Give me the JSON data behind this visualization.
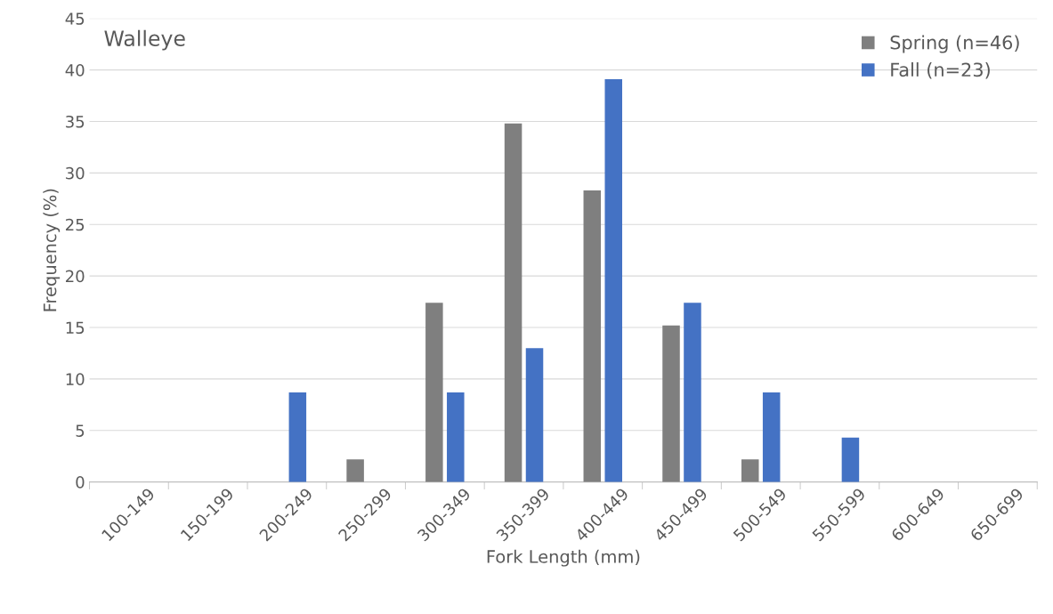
{
  "chart_data": {
    "type": "bar",
    "title": "Walleye",
    "xlabel": "Fork Length (mm)",
    "ylabel": "Frequency (%)",
    "categories": [
      "100-149",
      "150-199",
      "200-249",
      "250-299",
      "300-349",
      "350-399",
      "400-449",
      "450-499",
      "500-549",
      "550-599",
      "600-649",
      "650-699"
    ],
    "series": [
      {
        "name": "Spring (n=46)",
        "color": "#7f7f7f",
        "values": [
          0,
          0,
          0,
          2.2,
          17.4,
          34.8,
          28.3,
          15.2,
          2.2,
          0,
          0,
          0
        ]
      },
      {
        "name": "Fall (n=23)",
        "color": "#4472c4",
        "values": [
          0,
          0,
          8.7,
          0,
          8.7,
          13.0,
          39.1,
          17.4,
          8.7,
          4.3,
          0,
          0
        ]
      }
    ],
    "ylim": [
      0,
      45
    ],
    "yticks": [
      0,
      5,
      10,
      15,
      20,
      25,
      30,
      35,
      40,
      45
    ],
    "grid": "y",
    "legend": "top right"
  }
}
